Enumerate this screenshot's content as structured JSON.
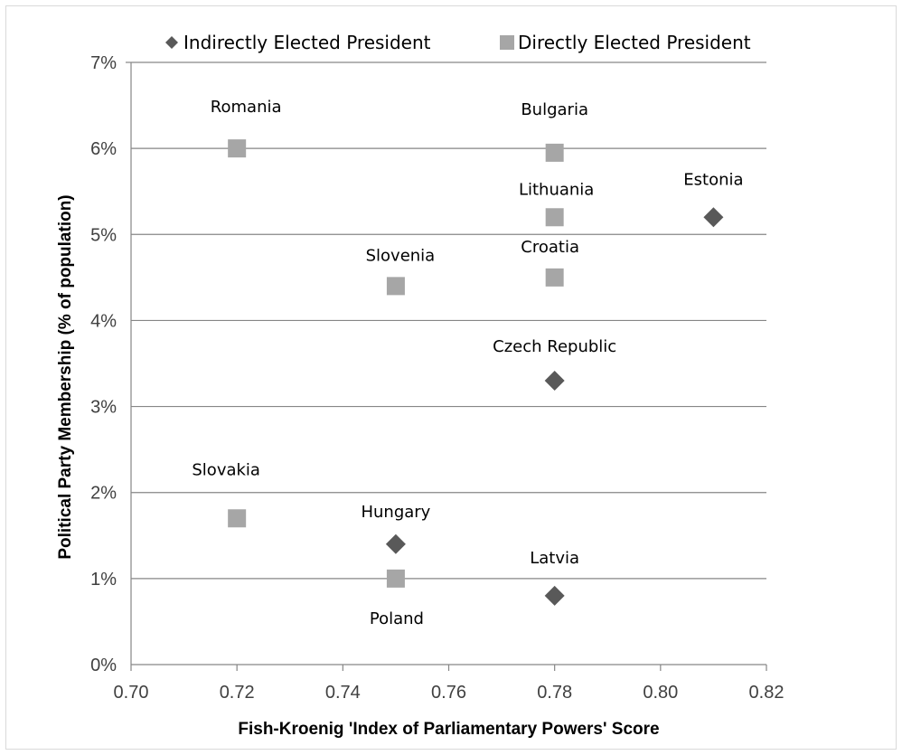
{
  "chart_data": {
    "type": "scatter",
    "xlabel": "Fish-Kroenig 'Index of Parliamentary Powers' Score",
    "ylabel": "Political Party Membership (% of population)",
    "xlim": [
      0.7,
      0.82
    ],
    "ylim": [
      0,
      7
    ],
    "x_ticks": [
      "0.70",
      "0.72",
      "0.74",
      "0.76",
      "0.78",
      "0.80",
      "0.82"
    ],
    "y_ticks": [
      "0%",
      "1%",
      "2%",
      "3%",
      "4%",
      "5%",
      "6%",
      "7%"
    ],
    "grid": "horizontal",
    "legend_position": "top",
    "series": [
      {
        "name": "Indirectly Elected President",
        "marker": "diamond",
        "color": "#595959",
        "points": [
          {
            "label": "Estonia",
            "x": 0.81,
            "y": 5.2
          },
          {
            "label": "Czech Republic",
            "x": 0.78,
            "y": 3.3
          },
          {
            "label": "Hungary",
            "x": 0.75,
            "y": 1.4
          },
          {
            "label": "Latvia",
            "x": 0.78,
            "y": 0.8
          }
        ]
      },
      {
        "name": "Directly Elected President",
        "marker": "square",
        "color": "#a6a6a6",
        "points": [
          {
            "label": "Romania",
            "x": 0.72,
            "y": 6.0
          },
          {
            "label": "Bulgaria",
            "x": 0.78,
            "y": 5.95
          },
          {
            "label": "Lithuania",
            "x": 0.78,
            "y": 5.2
          },
          {
            "label": "Croatia",
            "x": 0.78,
            "y": 4.5
          },
          {
            "label": "Slovenia",
            "x": 0.75,
            "y": 4.4
          },
          {
            "label": "Slovakia",
            "x": 0.72,
            "y": 1.7
          },
          {
            "label": "Poland",
            "x": 0.75,
            "y": 1.0
          }
        ]
      }
    ]
  }
}
